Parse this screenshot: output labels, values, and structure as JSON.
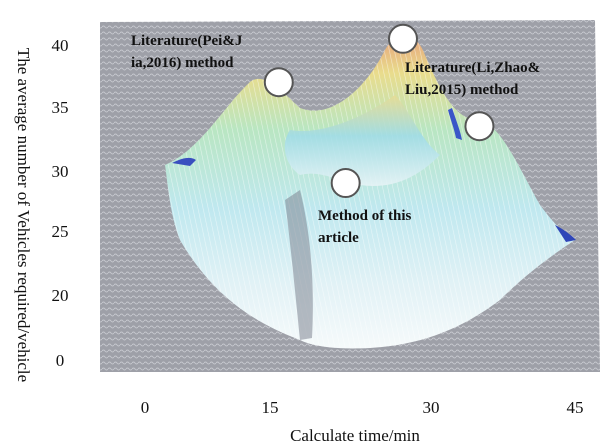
{
  "chart_data": {
    "type": "surface",
    "xlabel": "Calculate time/min",
    "ylabel": "The average number of Vehicles required/vehicle",
    "x_ticks": [
      "0",
      "15",
      "30",
      "45"
    ],
    "y_ticks": [
      "40",
      "35",
      "30",
      "25",
      "20",
      "0"
    ],
    "grid": false,
    "annotations": [
      {
        "lines": [
          "Literature(Pei&J",
          "ia,2016) method"
        ],
        "x": 14,
        "y": 37
      },
      {
        "lines": [
          "Literature(Li,Zhao&",
          "Liu,2015) method"
        ],
        "x": 35,
        "y": 33.5
      },
      {
        "lines": [
          "Method of this",
          "article"
        ],
        "x": 21,
        "y": 29
      }
    ],
    "peaks": [
      {
        "x": 14,
        "y": 37
      },
      {
        "x": 27,
        "y": 40.5
      },
      {
        "x": 35,
        "y": 33.5
      },
      {
        "x": 21,
        "y": 29
      }
    ]
  }
}
